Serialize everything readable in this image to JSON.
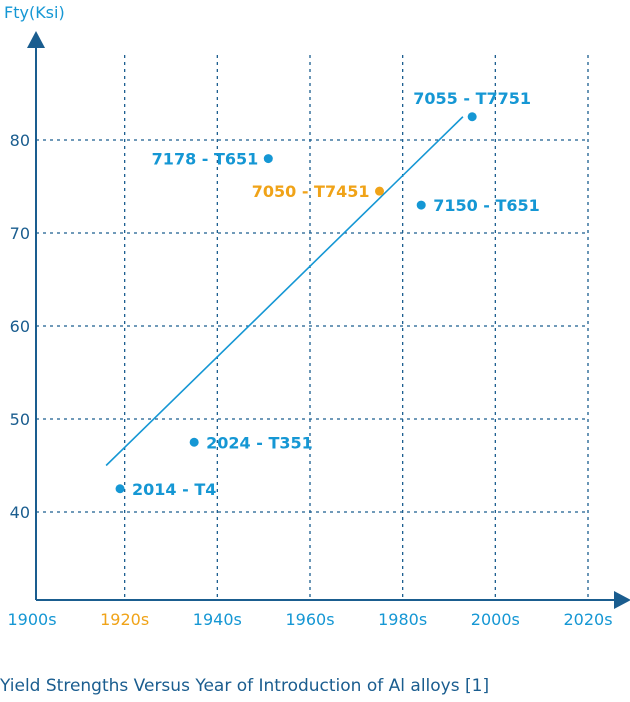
{
  "caption": "Yield Strengths Versus Year of Introduction of Al alloys [1]",
  "colors": {
    "primary": "#1597d4",
    "highlight": "#f0a318",
    "axis_text": "#1a5d8f",
    "grid": "#1a5d8f"
  },
  "chart_data": {
    "type": "scatter",
    "title": "",
    "xlabel": "",
    "ylabel": "Fty(Ksi)",
    "x_ticks": [
      {
        "label": "1900s",
        "value": 1900,
        "highlight": false
      },
      {
        "label": "1920s",
        "value": 1920,
        "highlight": true
      },
      {
        "label": "1940s",
        "value": 1940,
        "highlight": false
      },
      {
        "label": "1960s",
        "value": 1960,
        "highlight": false
      },
      {
        "label": "1980s",
        "value": 1980,
        "highlight": false
      },
      {
        "label": "2000s",
        "value": 2000,
        "highlight": false
      },
      {
        "label": "2020s",
        "value": 2020,
        "highlight": false
      }
    ],
    "y_ticks": [
      40,
      50,
      60,
      70,
      80
    ],
    "xlim": [
      1900,
      2020
    ],
    "ylim": [
      30,
      90
    ],
    "grid": true,
    "points": [
      {
        "label": "2014 - T4",
        "x": 1919,
        "y": 42.5,
        "highlight": false,
        "label_side": "right"
      },
      {
        "label": "2024 - T351",
        "x": 1935,
        "y": 47.5,
        "highlight": false,
        "label_side": "right"
      },
      {
        "label": "7178 - T651",
        "x": 1951,
        "y": 78,
        "highlight": false,
        "label_side": "left"
      },
      {
        "label": "7050 - T7451",
        "x": 1975,
        "y": 74.5,
        "highlight": true,
        "label_side": "left"
      },
      {
        "label": "7150 - T651",
        "x": 1984,
        "y": 73,
        "highlight": false,
        "label_side": "right"
      },
      {
        "label": "7055 - T7751",
        "x": 1995,
        "y": 82.5,
        "highlight": false,
        "label_side": "above"
      }
    ],
    "trendline": {
      "x": [
        1916,
        1993
      ],
      "y": [
        45,
        82.5
      ]
    }
  }
}
